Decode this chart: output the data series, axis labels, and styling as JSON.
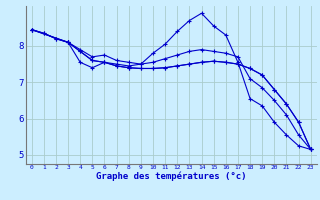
{
  "xlabel": "Graphe des températures (°c)",
  "background_color": "#cceeff",
  "grid_color": "#aacccc",
  "line_color": "#0000cc",
  "xlim": [
    -0.5,
    23.5
  ],
  "ylim": [
    4.75,
    9.1
  ],
  "xticks": [
    0,
    1,
    2,
    3,
    4,
    5,
    6,
    7,
    8,
    9,
    10,
    11,
    12,
    13,
    14,
    15,
    16,
    17,
    18,
    19,
    20,
    21,
    22,
    23
  ],
  "yticks": [
    5,
    6,
    7,
    8
  ],
  "line1_x": [
    0,
    1,
    2,
    3,
    4,
    5,
    6,
    7,
    8,
    9,
    10,
    11,
    12,
    13,
    14,
    15,
    16,
    17,
    18,
    19,
    20,
    21,
    22,
    23
  ],
  "line1_y": [
    8.45,
    8.35,
    8.2,
    8.1,
    7.55,
    7.4,
    7.55,
    7.5,
    7.45,
    7.5,
    7.8,
    8.05,
    8.4,
    8.7,
    8.9,
    8.55,
    8.3,
    7.55,
    6.55,
    6.35,
    5.9,
    5.55,
    5.25,
    5.15
  ],
  "line2_x": [
    0,
    1,
    2,
    3,
    4,
    5,
    6,
    7,
    8,
    9,
    10,
    11,
    12,
    13,
    14,
    15,
    16,
    17,
    18,
    19,
    20,
    21,
    22,
    23
  ],
  "line2_y": [
    8.45,
    8.35,
    8.2,
    8.1,
    7.9,
    7.7,
    7.75,
    7.6,
    7.55,
    7.5,
    7.55,
    7.65,
    7.75,
    7.85,
    7.9,
    7.85,
    7.8,
    7.7,
    7.1,
    6.85,
    6.5,
    6.1,
    5.55,
    5.15
  ],
  "line3_x": [
    0,
    3,
    4,
    5,
    6,
    7,
    8,
    9,
    10,
    11,
    12,
    13,
    14,
    15,
    16,
    17,
    18,
    19,
    20,
    21,
    22,
    23
  ],
  "line3_y": [
    8.45,
    8.1,
    7.85,
    7.6,
    7.55,
    7.45,
    7.4,
    7.38,
    7.38,
    7.4,
    7.45,
    7.5,
    7.55,
    7.58,
    7.55,
    7.5,
    7.38,
    7.2,
    6.8,
    6.4,
    5.9,
    5.15
  ],
  "line4_x": [
    0,
    3,
    4,
    5,
    6,
    7,
    8,
    9,
    10,
    11,
    12,
    13,
    14,
    15,
    16,
    17,
    18,
    19,
    20,
    21,
    22,
    23
  ],
  "line4_y": [
    8.45,
    8.1,
    7.85,
    7.6,
    7.55,
    7.45,
    7.4,
    7.38,
    7.38,
    7.4,
    7.45,
    7.5,
    7.55,
    7.58,
    7.55,
    7.5,
    7.38,
    7.2,
    6.8,
    6.4,
    5.9,
    5.15
  ]
}
